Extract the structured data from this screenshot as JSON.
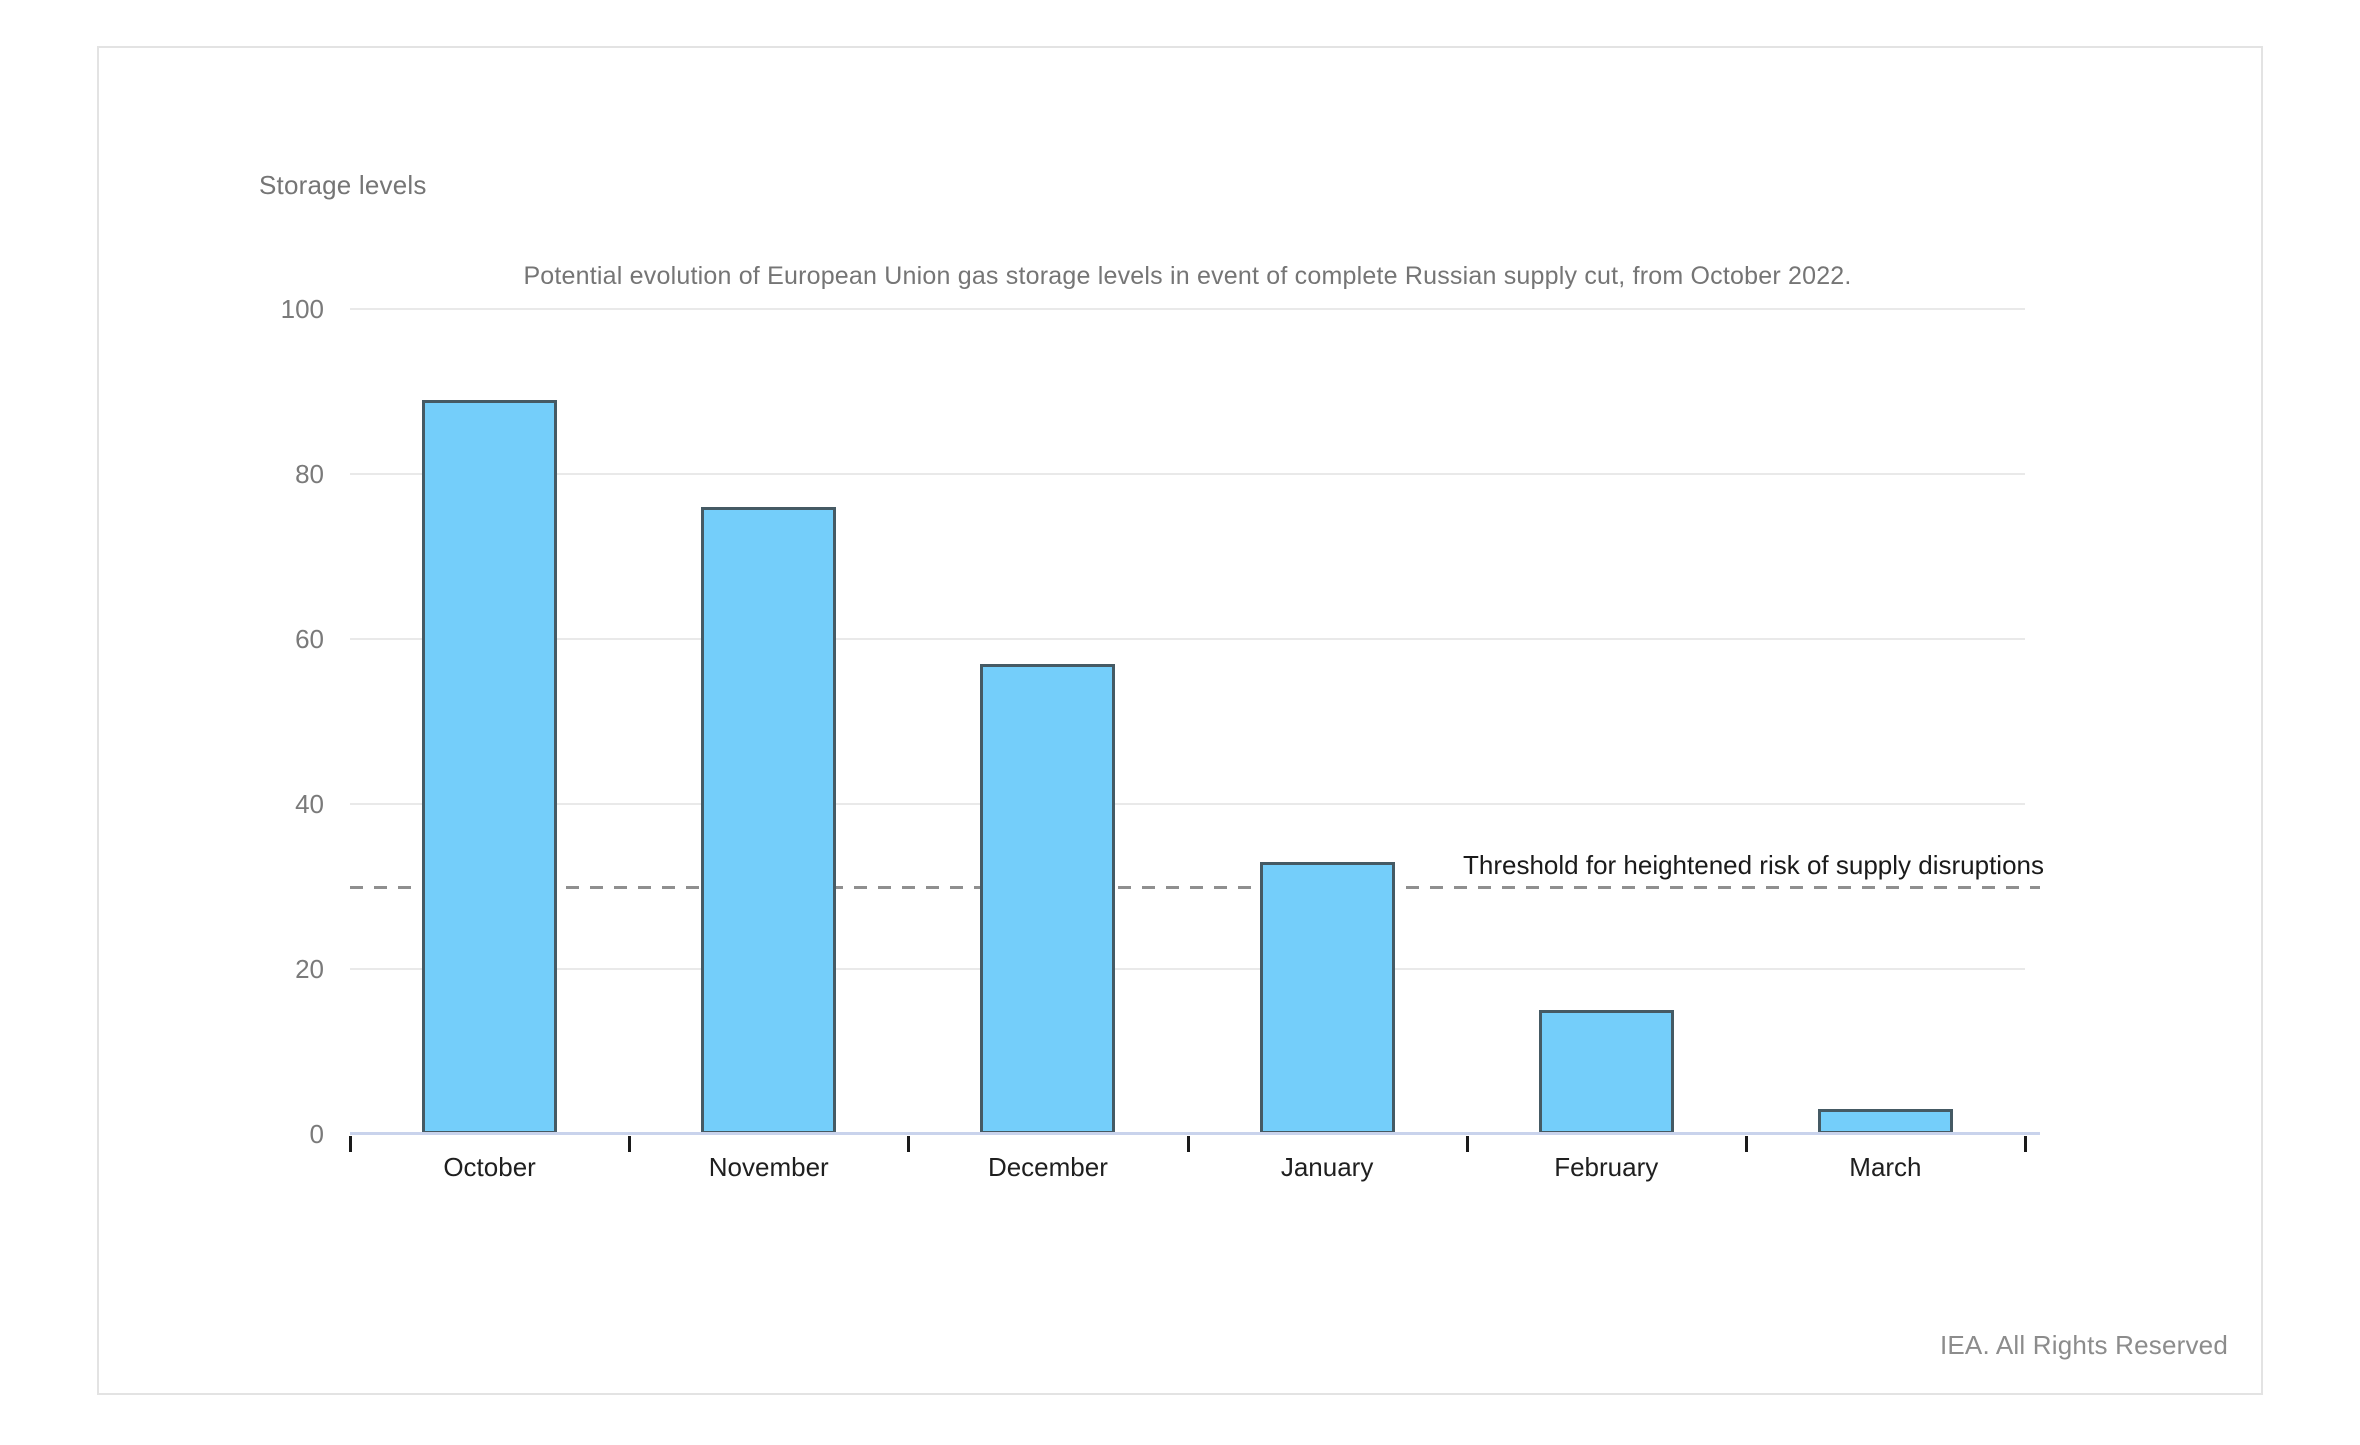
{
  "chart_data": {
    "type": "bar",
    "title": "Storage levels",
    "subtitle": "Potential evolution of European Union gas storage levels in event of complete Russian supply cut, from October 2022.",
    "categories": [
      "October",
      "November",
      "December",
      "January",
      "February",
      "March"
    ],
    "values": [
      89,
      76,
      57,
      33,
      15,
      3
    ],
    "xlabel": "",
    "ylabel": "Storage levels",
    "ylim": [
      0,
      100
    ],
    "yticks": [
      0,
      20,
      40,
      60,
      80,
      100
    ],
    "grid": true,
    "legend": "none",
    "threshold": {
      "value": 30,
      "label": "Threshold for heightened risk of supply disruptions"
    },
    "colors": {
      "bar_fill": "#74CEFA",
      "bar_border": "#455A64",
      "gridline": "#e9e9e9",
      "axis_line": "#c9d3ec",
      "threshold_dash": "#8f8f8f"
    }
  },
  "footer": {
    "credit": "IEA. All Rights Reserved"
  }
}
